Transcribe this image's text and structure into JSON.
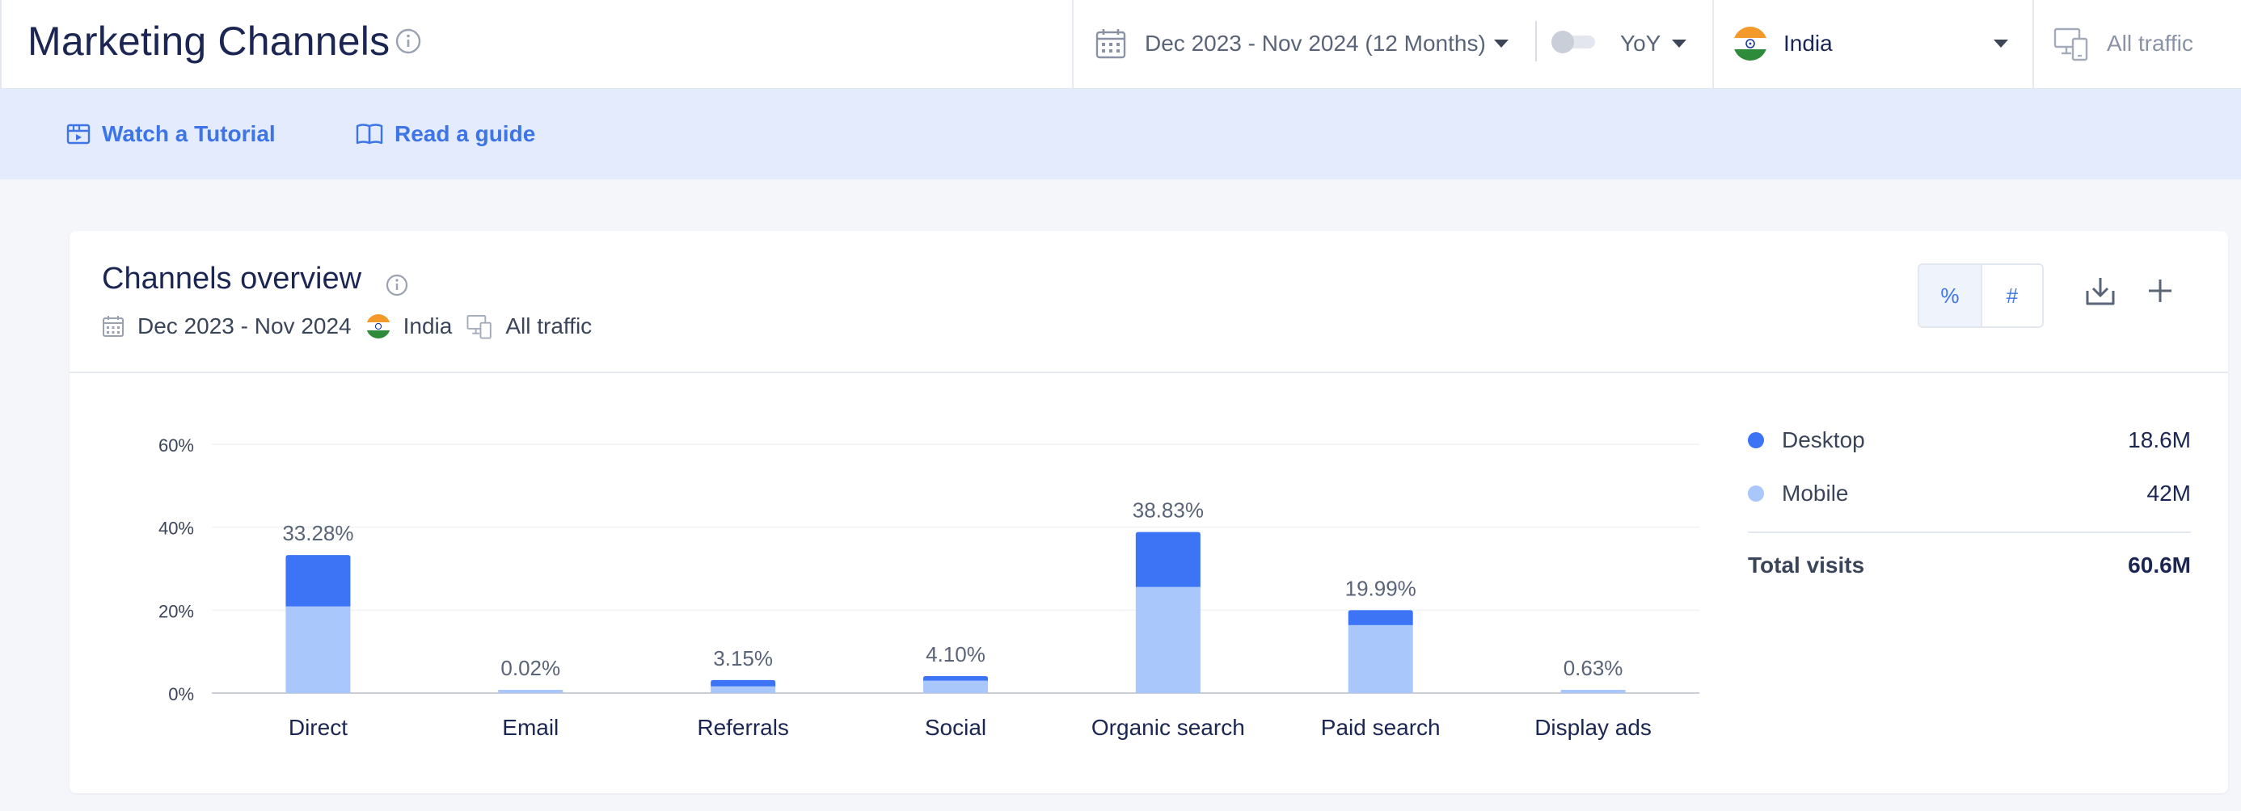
{
  "header": {
    "title": "Marketing Channels",
    "date_range": "Dec 2023 - Nov 2024 (12 Months)",
    "yoy_label": "YoY",
    "yoy_enabled": false,
    "country": "India",
    "traffic": "All traffic"
  },
  "banner": {
    "tutorial_label": "Watch a Tutorial",
    "guide_label": "Read a guide"
  },
  "card": {
    "title": "Channels overview",
    "meta_date": "Dec 2023 - Nov 2024",
    "meta_country": "India",
    "meta_traffic": "All traffic",
    "unit_percent": "%",
    "unit_number": "#",
    "active_unit": "%"
  },
  "colors": {
    "desktop": "#3d74f5",
    "mobile": "#a9c7fb",
    "accent": "#3d74e8"
  },
  "legend": {
    "desktop_label": "Desktop",
    "desktop_value": "18.6M",
    "mobile_label": "Mobile",
    "mobile_value": "42M",
    "total_label": "Total visits",
    "total_value": "60.6M"
  },
  "chart_data": {
    "type": "bar",
    "stacked": true,
    "categories": [
      "Direct",
      "Email",
      "Referrals",
      "Social",
      "Organic search",
      "Paid search",
      "Display ads"
    ],
    "series": [
      {
        "name": "Mobile",
        "values": [
          20.9,
          0.02,
          1.6,
          3.0,
          25.6,
          16.4,
          0.63
        ]
      },
      {
        "name": "Desktop",
        "values": [
          12.38,
          0.0,
          1.55,
          1.1,
          13.23,
          3.59,
          0.0
        ]
      }
    ],
    "totals": [
      33.28,
      0.02,
      3.15,
      4.1,
      38.83,
      19.99,
      0.63
    ],
    "total_labels": [
      "33.28%",
      "0.02%",
      "3.15%",
      "4.10%",
      "38.83%",
      "19.99%",
      "0.63%"
    ],
    "y_ticks": [
      "60%",
      "40%",
      "20%",
      "0%"
    ],
    "y_tick_values": [
      60,
      40,
      20,
      0
    ],
    "ylim": [
      0,
      60
    ],
    "grid": true,
    "legend_position": "right"
  }
}
